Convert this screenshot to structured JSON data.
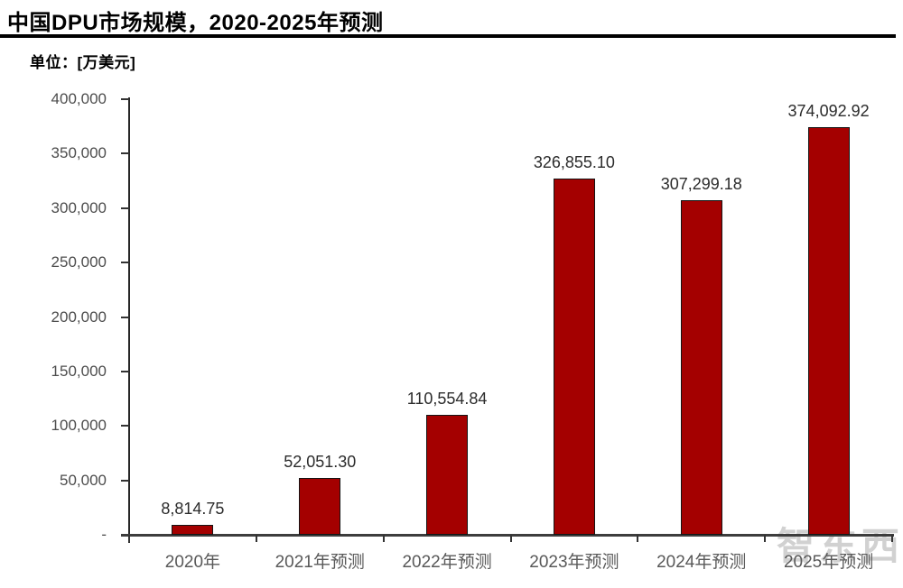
{
  "header": {
    "title": "中国DPU市场规模，2020-2025年预测",
    "unit_label": "单位：[万美元]"
  },
  "chart_data": {
    "type": "bar",
    "title": "中国DPU市场规模，2020-2025年预测",
    "unit": "万美元",
    "categories": [
      "2020年",
      "2021年预测",
      "2022年预测",
      "2023年预测",
      "2024年预测",
      "2025年预测"
    ],
    "values": [
      8814.75,
      52051.3,
      110554.84,
      326855.1,
      307299.18,
      374092.92
    ],
    "value_labels": [
      "8,814.75",
      "52,051.30",
      "110,554.84",
      "326,855.10",
      "307,299.18",
      "374,092.92"
    ],
    "ylim": [
      0,
      400000
    ],
    "ytick_step": 50000,
    "ytick_labels_bottom_to_top": [
      "-",
      "50,000",
      "100,000",
      "150,000",
      "200,000",
      "250,000",
      "300,000",
      "350,000",
      "400,000"
    ],
    "grid": false,
    "legend": "none",
    "bar_color": "#a40000",
    "bar_border_color": "#141414",
    "axis_color": "#262626"
  },
  "watermark": {
    "text": "智东西"
  }
}
